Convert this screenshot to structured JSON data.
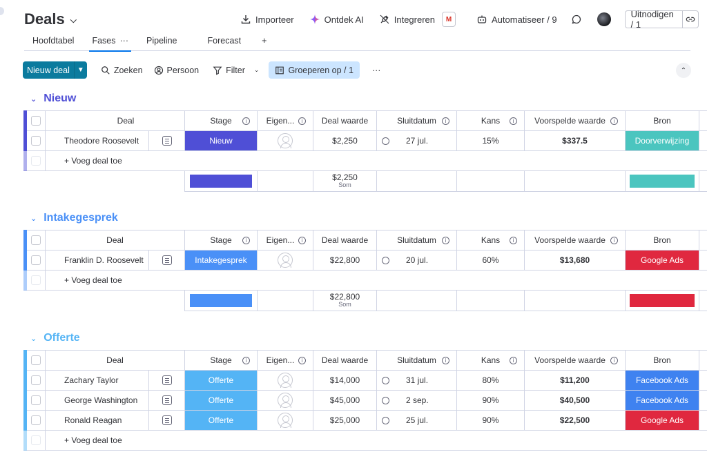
{
  "header": {
    "title": "Deals",
    "actions": {
      "import": "Importeer",
      "discover_ai": "Ontdek AI",
      "integrate": "Integreren",
      "gmail_letter": "M",
      "automate": "Automatiseer / 9",
      "invite": "Uitnodigen / 1"
    }
  },
  "tabs": [
    {
      "label": "Hoofdtabel"
    },
    {
      "label": "Fases"
    },
    {
      "label": "Pipeline"
    },
    {
      "label": "Forecast"
    },
    {
      "label": "+"
    }
  ],
  "tab_active_dots": "···",
  "toolbar": {
    "new_deal": "Nieuw deal",
    "search": "Zoeken",
    "person": "Persoon",
    "filter": "Filter",
    "group_by": "Groeperen op / 1",
    "more": "···"
  },
  "columns": {
    "deal": "Deal",
    "stage": "Stage",
    "owner": "Eigen...",
    "deal_value": "Deal waarde",
    "close_date": "Sluitdatum",
    "chance": "Kans",
    "forecast_value": "Voorspelde waarde",
    "source": "Bron"
  },
  "add_deal_label": "+ Voeg deal toe",
  "sum_label": "Som",
  "colors": {
    "nieuw": "#4f4fd6",
    "intake": "#4a90f7",
    "offerte": "#54b4f5",
    "referral": "#4bc5bf",
    "google_ads": "#e0283f",
    "facebook_ads": "#3f82f0"
  },
  "groups": [
    {
      "title": "Nieuw",
      "color": "#4f4fd6",
      "rows": [
        {
          "deal": "Theodore Roosevelt",
          "stage": "Nieuw",
          "stage_color": "#4f4fd6",
          "value": "$2,250",
          "date": "27 jul.",
          "chance": "15%",
          "forecast": "$337.5",
          "source": "Doorverwijzing",
          "source_color": "#4bc5bf"
        }
      ],
      "sum": "$2,250",
      "sum_source_color": "#4bc5bf"
    },
    {
      "title": "Intakegesprek",
      "color": "#4a90f7",
      "rows": [
        {
          "deal": "Franklin D. Roosevelt",
          "stage": "Intakegesprek",
          "stage_color": "#4a90f7",
          "value": "$22,800",
          "date": "20 jul.",
          "chance": "60%",
          "forecast": "$13,680",
          "source": "Google Ads",
          "source_color": "#e0283f"
        }
      ],
      "sum": "$22,800",
      "sum_source_color": "#e0283f"
    },
    {
      "title": "Offerte",
      "color": "#54b4f5",
      "rows": [
        {
          "deal": "Zachary Taylor",
          "stage": "Offerte",
          "stage_color": "#54b4f5",
          "value": "$14,000",
          "date": "31 jul.",
          "chance": "80%",
          "forecast": "$11,200",
          "source": "Facebook Ads",
          "source_color": "#3f82f0"
        },
        {
          "deal": "George Washington",
          "stage": "Offerte",
          "stage_color": "#54b4f5",
          "value": "$45,000",
          "date": "2 sep.",
          "chance": "90%",
          "forecast": "$40,500",
          "source": "Facebook Ads",
          "source_color": "#3f82f0"
        },
        {
          "deal": "Ronald Reagan",
          "stage": "Offerte",
          "stage_color": "#54b4f5",
          "value": "$25,000",
          "date": "25 jul.",
          "chance": "90%",
          "forecast": "$22,500",
          "source": "Google Ads",
          "source_color": "#e0283f"
        }
      ]
    }
  ]
}
